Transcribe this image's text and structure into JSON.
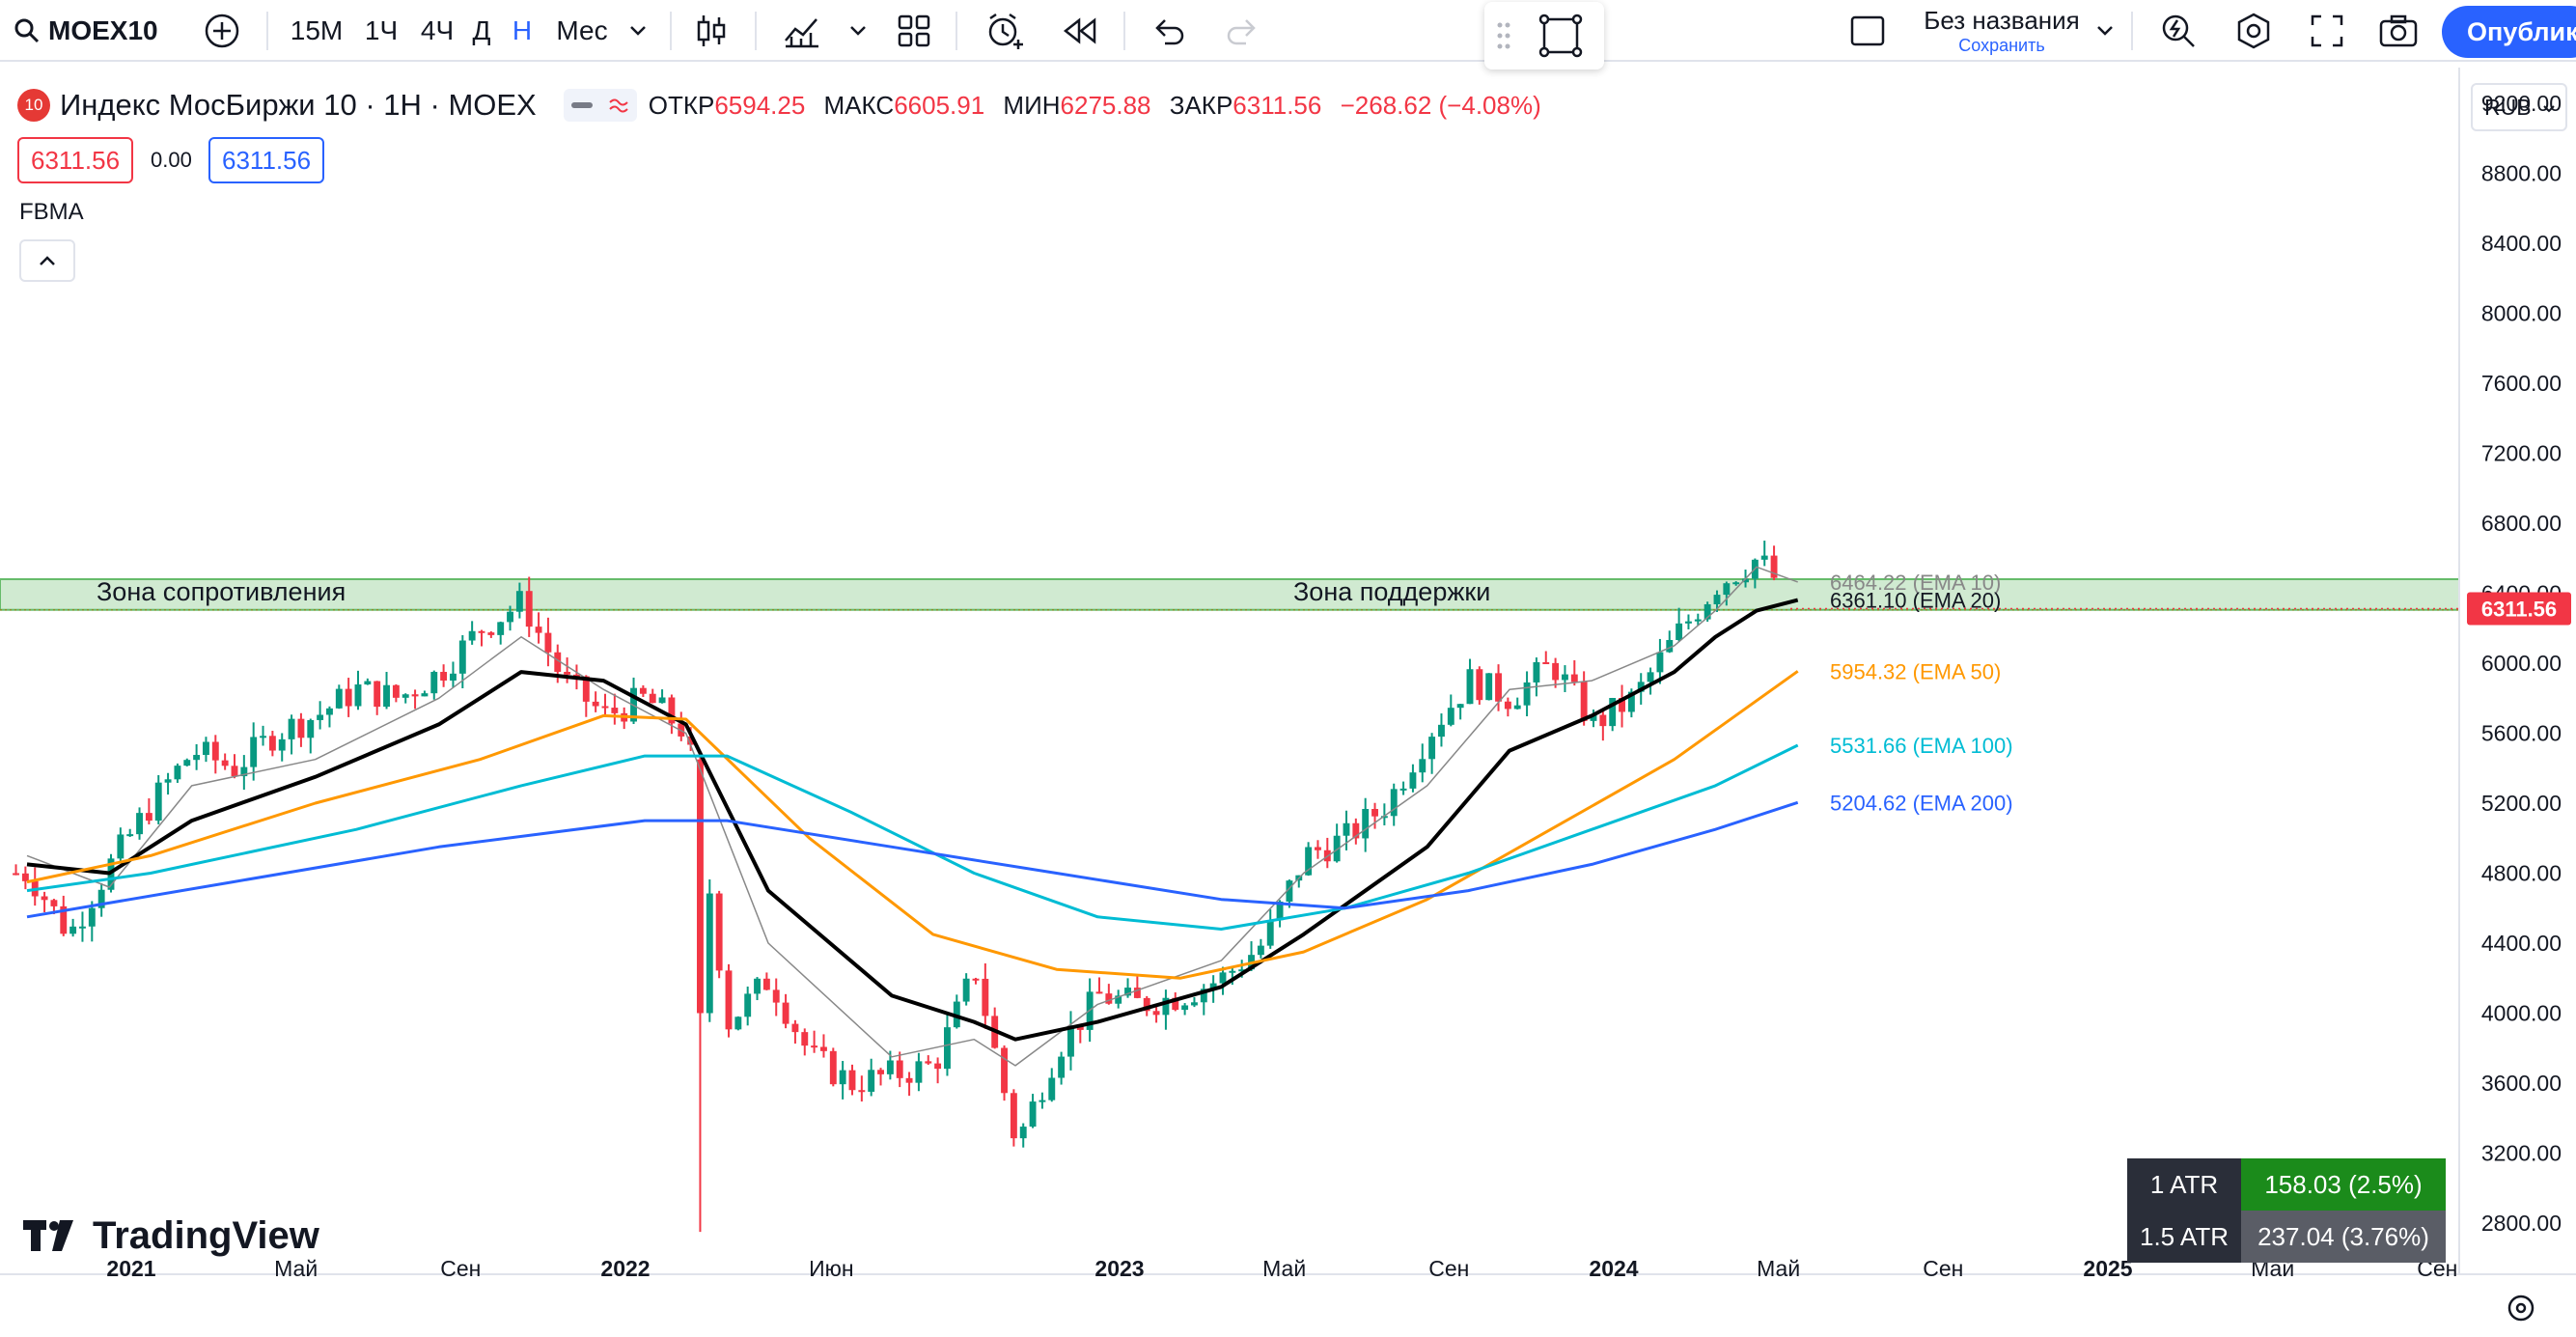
{
  "toolbar": {
    "symbol": "MOEX10",
    "intervals": [
      "15M",
      "1Ч",
      "4Ч",
      "Д",
      "Н",
      "Мес"
    ],
    "active_interval": "Н",
    "layout_name": "Без названия",
    "save_label": "Сохранить",
    "publish_label": "Опублико"
  },
  "legend": {
    "badge": "10",
    "title": "Индекс МосБиржи 10 · 1Н · MOEX",
    "open_label": "ОТКР",
    "open": "6594.25",
    "high_label": "МАКС",
    "high": "6605.91",
    "low_label": "МИН",
    "low": "6275.88",
    "close_label": "ЗАКР",
    "close": "6311.56",
    "change": "−268.62 (−4.08%)"
  },
  "price_boxes": {
    "bid": "6311.56",
    "spread": "0.00",
    "ask": "6311.56"
  },
  "indicator": {
    "name": "FBMA"
  },
  "currency": "RUB",
  "watermark": "TradingView",
  "atr": [
    {
      "label": "1 ATR",
      "value": "158.03 (2.5%)",
      "color": "#1b8b1b"
    },
    {
      "label": "1.5 ATR",
      "value": "237.04 (3.76%)",
      "color": "#5a5d66"
    }
  ],
  "colors": {
    "up": "#089981",
    "down": "#f23645",
    "ema10": "#888888",
    "ema20": "#000000",
    "ema50": "#ff9800",
    "ema100": "#00bcd4",
    "ema200": "#2962ff",
    "zone": "#c8e6c9"
  },
  "chart_data": {
    "type": "candlestick",
    "y_ticks": [
      "9200.00",
      "8800.00",
      "8400.00",
      "8000.00",
      "7600.00",
      "7200.00",
      "6800.00",
      "6400.00",
      "6000.00",
      "5600.00",
      "5200.00",
      "4800.00",
      "4400.00",
      "4000.00",
      "3600.00",
      "3200.00",
      "2800.00"
    ],
    "ylim": [
      2600,
      9300
    ],
    "x_ticks": [
      "2021",
      "Май",
      "Сен",
      "2022",
      "Июн",
      "2023",
      "Май",
      "Сен",
      "2024",
      "Май",
      "Сен",
      "2025",
      "Май",
      "Сен"
    ],
    "x_tick_positions": [
      "2021-01",
      "2021-05",
      "2021-09",
      "2022-01",
      "2022-06",
      "2023-01",
      "2023-05",
      "2023-09",
      "2024-01",
      "2024-05",
      "2024-09",
      "2025-01",
      "2025-05",
      "2025-09"
    ],
    "last_price": "6311.56",
    "annotations": [
      {
        "text": "Зона сопротивления",
        "price_low": 6305,
        "price_high": 6480
      },
      {
        "text": "Зона поддержки",
        "price_low": 6305,
        "price_high": 6480
      }
    ],
    "ema_lines": [
      {
        "name": "EMA 10",
        "last": "6464.22",
        "points": [
          [
            "2020-10",
            4900
          ],
          [
            "2020-12",
            4720
          ],
          [
            "2021-02",
            5300
          ],
          [
            "2021-05",
            5450
          ],
          [
            "2021-08",
            5800
          ],
          [
            "2021-10",
            6150
          ],
          [
            "2021-12",
            5850
          ],
          [
            "2022-02",
            5600
          ],
          [
            "2022-04",
            4400
          ],
          [
            "2022-07",
            3750
          ],
          [
            "2022-09",
            3850
          ],
          [
            "2022-10",
            3700
          ],
          [
            "2022-12",
            4050
          ],
          [
            "2023-03",
            4300
          ],
          [
            "2023-05",
            4800
          ],
          [
            "2023-08",
            5300
          ],
          [
            "2023-10",
            5850
          ],
          [
            "2023-12",
            5900
          ],
          [
            "2024-02",
            6100
          ],
          [
            "2024-03",
            6300
          ],
          [
            "2024-04",
            6550
          ],
          [
            "2024-05",
            6464
          ]
        ]
      },
      {
        "name": "EMA 20",
        "last": "6361.10",
        "points": [
          [
            "2020-10",
            4850
          ],
          [
            "2020-12",
            4800
          ],
          [
            "2021-02",
            5100
          ],
          [
            "2021-05",
            5350
          ],
          [
            "2021-08",
            5650
          ],
          [
            "2021-10",
            5950
          ],
          [
            "2021-12",
            5900
          ],
          [
            "2022-02",
            5650
          ],
          [
            "2022-04",
            4700
          ],
          [
            "2022-07",
            4100
          ],
          [
            "2022-09",
            3950
          ],
          [
            "2022-10",
            3850
          ],
          [
            "2022-12",
            3950
          ],
          [
            "2023-03",
            4150
          ],
          [
            "2023-05",
            4450
          ],
          [
            "2023-08",
            4950
          ],
          [
            "2023-10",
            5500
          ],
          [
            "2023-12",
            5700
          ],
          [
            "2024-02",
            5950
          ],
          [
            "2024-03",
            6150
          ],
          [
            "2024-04",
            6300
          ],
          [
            "2024-05",
            6361
          ]
        ]
      },
      {
        "name": "EMA 50",
        "last": "5954.32",
        "points": [
          [
            "2020-10",
            4750
          ],
          [
            "2021-01",
            4900
          ],
          [
            "2021-05",
            5200
          ],
          [
            "2021-09",
            5450
          ],
          [
            "2021-12",
            5700
          ],
          [
            "2022-02",
            5680
          ],
          [
            "2022-05",
            5000
          ],
          [
            "2022-08",
            4450
          ],
          [
            "2022-11",
            4250
          ],
          [
            "2023-02",
            4200
          ],
          [
            "2023-05",
            4350
          ],
          [
            "2023-08",
            4650
          ],
          [
            "2023-11",
            5050
          ],
          [
            "2024-02",
            5450
          ],
          [
            "2024-05",
            5954
          ]
        ]
      },
      {
        "name": "EMA 100",
        "last": "5531.66",
        "points": [
          [
            "2020-10",
            4700
          ],
          [
            "2021-01",
            4800
          ],
          [
            "2021-06",
            5050
          ],
          [
            "2021-10",
            5300
          ],
          [
            "2022-01",
            5470
          ],
          [
            "2022-03",
            5470
          ],
          [
            "2022-06",
            5150
          ],
          [
            "2022-09",
            4800
          ],
          [
            "2022-12",
            4550
          ],
          [
            "2023-03",
            4480
          ],
          [
            "2023-06",
            4600
          ],
          [
            "2023-09",
            4800
          ],
          [
            "2023-12",
            5050
          ],
          [
            "2024-03",
            5300
          ],
          [
            "2024-05",
            5531
          ]
        ]
      },
      {
        "name": "EMA 200",
        "last": "5204.62",
        "points": [
          [
            "2020-10",
            4550
          ],
          [
            "2021-03",
            4750
          ],
          [
            "2021-08",
            4950
          ],
          [
            "2022-01",
            5100
          ],
          [
            "2022-03",
            5100
          ],
          [
            "2022-07",
            4950
          ],
          [
            "2022-11",
            4800
          ],
          [
            "2023-03",
            4650
          ],
          [
            "2023-06",
            4600
          ],
          [
            "2023-09",
            4700
          ],
          [
            "2023-12",
            4850
          ],
          [
            "2024-03",
            5050
          ],
          [
            "2024-05",
            5204
          ]
        ]
      }
    ],
    "price_path": [
      [
        "2020-10",
        4800
      ],
      [
        "2020-11",
        4450
      ],
      [
        "2020-12",
        4850
      ],
      [
        "2021-01",
        5200
      ],
      [
        "2021-02",
        5500
      ],
      [
        "2021-03",
        5400
      ],
      [
        "2021-04",
        5600
      ],
      [
        "2021-05",
        5700
      ],
      [
        "2021-06",
        5850
      ],
      [
        "2021-07",
        5800
      ],
      [
        "2021-08",
        5950
      ],
      [
        "2021-09",
        6200
      ],
      [
        "2021-10",
        6350
      ],
      [
        "2021-11",
        5900
      ],
      [
        "2021-12",
        5700
      ],
      [
        "2022-01",
        5800
      ],
      [
        "2022-02",
        5600
      ],
      [
        "2022-03",
        3950
      ],
      [
        "2022-04",
        4200
      ],
      [
        "2022-05",
        3750
      ],
      [
        "2022-06",
        3600
      ],
      [
        "2022-07",
        3650
      ],
      [
        "2022-08",
        3700
      ],
      [
        "2022-09",
        4250
      ],
      [
        "2022-10",
        3250
      ],
      [
        "2022-11",
        3800
      ],
      [
        "2022-12",
        4100
      ],
      [
        "2023-01",
        4050
      ],
      [
        "2023-02",
        4100
      ],
      [
        "2023-03",
        4200
      ],
      [
        "2023-04",
        4400
      ],
      [
        "2023-05",
        4900
      ],
      [
        "2023-06",
        5000
      ],
      [
        "2023-07",
        5200
      ],
      [
        "2023-08",
        5600
      ],
      [
        "2023-09",
        5900
      ],
      [
        "2023-10",
        5800
      ],
      [
        "2023-11",
        6000
      ],
      [
        "2023-12",
        5650
      ],
      [
        "2024-01",
        5800
      ],
      [
        "2024-02",
        6150
      ],
      [
        "2024-03",
        6450
      ],
      [
        "2024-04",
        6600
      ],
      [
        "2024-05",
        6312
      ]
    ]
  }
}
